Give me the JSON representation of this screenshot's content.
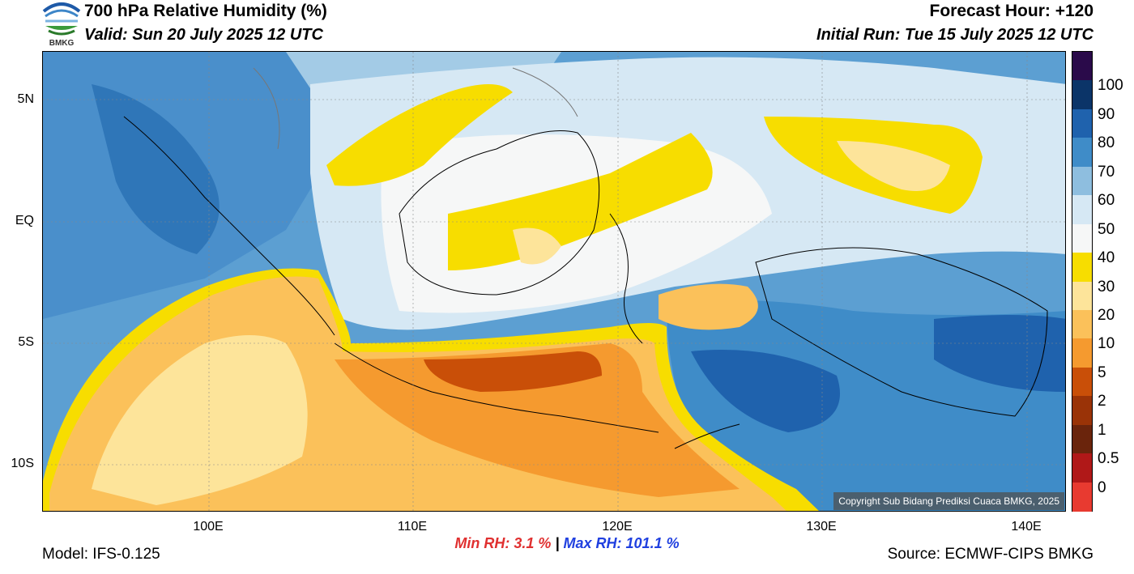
{
  "header": {
    "logo_text": "BMKG",
    "title": "700 hPa Relative Humidity (%)",
    "valid": "Valid: Sun 20 July 2025 12 UTC",
    "forecast_hour": "Forecast Hour: +120",
    "initial_run": "Initial Run: Tue 15 July 2025 12 UTC"
  },
  "axes": {
    "lat_labels": [
      "5N",
      "EQ",
      "5S",
      "10S"
    ],
    "lon_labels": [
      "100E",
      "110E",
      "120E",
      "130E",
      "140E"
    ]
  },
  "colorbar": {
    "labels": [
      "100",
      "90",
      "80",
      "70",
      "60",
      "50",
      "40",
      "30",
      "20",
      "10",
      "5",
      "2",
      "1",
      "0.5",
      "0"
    ],
    "colors": [
      "#2a0a4a",
      "#0b3468",
      "#1f62ad",
      "#3f8cc8",
      "#8ebedf",
      "#d6e8f4",
      "#f6f7f7",
      "#f7dd00",
      "#fde49a",
      "#fbc15a",
      "#f59a2f",
      "#c94f08",
      "#9a3307",
      "#6a240c",
      "#b01818",
      "#e83a30"
    ]
  },
  "copyright": "Copyright Sub Bidang Prediksi Cuaca BMKG, 2025",
  "stats": {
    "min_label": "Min RH:",
    "min_value": "3.1 %",
    "separator": "|",
    "max_label": "Max RH:",
    "max_value": "101.1 %"
  },
  "footer": {
    "model": "Model: IFS-0.125",
    "source": "Source: ECMWF-CIPS BMKG"
  }
}
